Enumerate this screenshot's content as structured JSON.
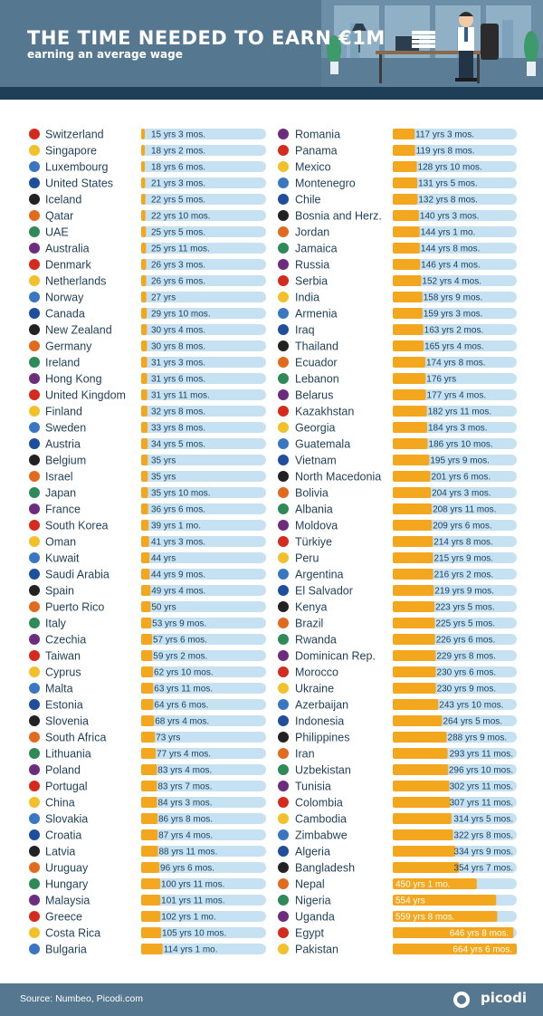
{
  "header": {
    "title": "THE TIME NEEDED TO EARN €1M",
    "subtitle": "earning an average wage"
  },
  "footer": {
    "source": "Source: Numbeo, Picodi.com",
    "brand": "picodi"
  },
  "colors": {
    "header": "#55778f",
    "header_strip": "#1f3f59",
    "track": "#c5e1f2",
    "bar": "#f2a71f",
    "text": "#1f3f59"
  },
  "chart_data": {
    "type": "bar",
    "unit": "years",
    "title": "THE TIME NEEDED TO EARN €1M",
    "subtitle": "earning an average wage",
    "xlim": [
      0,
      664.5
    ],
    "columns": [
      {
        "categories": [
          "Switzerland",
          "Singapore",
          "Luxembourg",
          "United States",
          "Iceland",
          "Qatar",
          "UAE",
          "Australia",
          "Denmark",
          "Netherlands",
          "Norway",
          "Canada",
          "New Zealand",
          "Germany",
          "Ireland",
          "Hong Kong",
          "United Kingdom",
          "Finland",
          "Sweden",
          "Austria",
          "Belgium",
          "Israel",
          "Japan",
          "France",
          "South Korea",
          "Oman",
          "Kuwait",
          "Saudi Arabia",
          "Spain",
          "Puerto Rico",
          "Italy",
          "Czechia",
          "Taiwan",
          "Cyprus",
          "Malta",
          "Estonia",
          "Slovenia",
          "South Africa",
          "Lithuania",
          "Poland",
          "Portugal",
          "China",
          "Slovakia",
          "Croatia",
          "Latvia",
          "Uruguay",
          "Hungary",
          "Malaysia",
          "Greece",
          "Costa Rica",
          "Bulgaria"
        ],
        "values": [
          15.25,
          18.17,
          18.5,
          21.25,
          22.42,
          22.83,
          25.42,
          25.92,
          26.25,
          26.5,
          27,
          29.83,
          30.33,
          30.67,
          31.25,
          31.5,
          31.92,
          32.67,
          33.67,
          34.42,
          35,
          35,
          35.83,
          36.5,
          39.08,
          41.25,
          44,
          44.75,
          49.33,
          50,
          53.75,
          57.5,
          59.17,
          62.83,
          63.92,
          64.5,
          68.33,
          73,
          77.33,
          83.33,
          83.58,
          84.25,
          86.67,
          87.33,
          88.92,
          96.5,
          100.92,
          101.92,
          102.08,
          105.83,
          114.08
        ],
        "labels": [
          "15 yrs 3 mos.",
          "18 yrs 2 mos.",
          "18 yrs 6 mos.",
          "21 yrs 3 mos.",
          "22 yrs 5 mos.",
          "22 yrs 10 mos.",
          "25 yrs 5 mos.",
          "25 yrs 11 mos.",
          "26 yrs 3 mos.",
          "26 yrs 6 mos.",
          "27 yrs",
          "29 yrs 10 mos.",
          "30 yrs 4 mos.",
          "30 yrs 8 mos.",
          "31 yrs 3 mos.",
          "31 yrs 6 mos.",
          "31 yrs 11 mos.",
          "32 yrs 8 mos.",
          "33 yrs 8 mos.",
          "34 yrs 5 mos.",
          "35 yrs",
          "35 yrs",
          "35 yrs 10 mos.",
          "36 yrs 6 mos.",
          "39 yrs 1 mo.",
          "41 yrs 3 mos.",
          "44 yrs",
          "44 yrs 9 mos.",
          "49 yrs 4 mos.",
          "50 yrs",
          "53 yrs 9 mos.",
          "57 yrs 6 mos.",
          "59 yrs 2 mos.",
          "62 yrs 10 mos.",
          "63 yrs 11 mos.",
          "64 yrs 6 mos.",
          "68 yrs 4 mos.",
          "73 yrs",
          "77 yrs 4 mos.",
          "83 yrs 4 mos.",
          "83 yrs 7 mos.",
          "84 yrs 3 mos.",
          "86 yrs 8 mos.",
          "87 yrs 4 mos.",
          "88 yrs 11 mos.",
          "96 yrs 6 mos.",
          "100 yrs 11 mos.",
          "101 yrs 11 mos.",
          "102 yrs 1 mo.",
          "105 yrs 10 mos.",
          "114 yrs 1 mo."
        ]
      },
      {
        "categories": [
          "Romania",
          "Panama",
          "Mexico",
          "Montenegro",
          "Chile",
          "Bosnia and Herz.",
          "Jordan",
          "Jamaica",
          "Russia",
          "Serbia",
          "India",
          "Armenia",
          "Iraq",
          "Thailand",
          "Ecuador",
          "Lebanon",
          "Belarus",
          "Kazakhstan",
          "Georgia",
          "Guatemala",
          "Vietnam",
          "North Macedonia",
          "Bolivia",
          "Albania",
          "Moldova",
          "Türkiye",
          "Peru",
          "Argentina",
          "El Salvador",
          "Kenya",
          "Brazil",
          "Rwanda",
          "Dominican Rep.",
          "Morocco",
          "Ukraine",
          "Azerbaijan",
          "Indonesia",
          "Philippines",
          "Iran",
          "Uzbekistan",
          "Tunisia",
          "Colombia",
          "Cambodia",
          "Zimbabwe",
          "Algeria",
          "Bangladesh",
          "Nepal",
          "Nigeria",
          "Uganda",
          "Egypt",
          "Pakistan"
        ],
        "values": [
          117.25,
          119.67,
          128.83,
          131.42,
          132.67,
          140.25,
          144.08,
          144.67,
          146.33,
          152.33,
          158.75,
          159.25,
          163.17,
          165.33,
          174.67,
          176,
          177.33,
          182.92,
          184.25,
          186.83,
          195.75,
          201.5,
          204.25,
          208.92,
          209.5,
          214.67,
          215.75,
          216.17,
          219.75,
          223.42,
          225.42,
          226.5,
          229.67,
          230.5,
          230.75,
          243.83,
          264.42,
          288.75,
          293.92,
          296.83,
          302.92,
          307.92,
          314.42,
          322.67,
          334.75,
          354.58,
          450.08,
          554,
          559.67,
          646.67,
          664.5
        ],
        "labels": [
          "117 yrs 3 mos.",
          "119 yrs 8 mos.",
          "128 yrs 10 mos.",
          "131 yrs 5 mos.",
          "132 yrs 8 mos.",
          "140 yrs 3 mos.",
          "144 yrs 1 mo.",
          "144 yrs 8 mos.",
          "146 yrs 4 mos.",
          "152 yrs 4 mos.",
          "158 yrs 9 mos.",
          "159 yrs 3 mos.",
          "163 yrs 2 mos.",
          "165 yrs 4 mos.",
          "174 yrs 8 mos.",
          "176 yrs",
          "177 yrs 4 mos.",
          "182 yrs 11 mos.",
          "184 yrs 3 mos.",
          "186 yrs 10 mos.",
          "195 yrs 9 mos.",
          "201 yrs 6 mos.",
          "204 yrs 3 mos.",
          "208 yrs 11 mos.",
          "209 yrs 6 mos.",
          "214 yrs 8 mos.",
          "215 yrs 9 mos.",
          "216 yrs 2 mos.",
          "219 yrs 9 mos.",
          "223 yrs 5 mos.",
          "225 yrs 5 mos.",
          "226 yrs 6 mos.",
          "229 yrs 8 mos.",
          "230 yrs 6 mos.",
          "230 yrs 9 mos.",
          "243 yrs 10 mos.",
          "264 yrs 5 mos.",
          "288 yrs 9 mos.",
          "293 yrs 11 mos.",
          "296 yrs 10 mos.",
          "302 yrs 11 mos.",
          "307 yrs 11 mos.",
          "314 yrs 5 mos.",
          "322 yrs 8 mos.",
          "334 yrs 9 mos.",
          "354 yrs 7 mos.",
          "450 yrs 1 mo.",
          "554 yrs",
          "559 yrs 8 mos.",
          "646 yrs 8 mos.",
          "664 yrs 6 mos."
        ]
      }
    ]
  }
}
